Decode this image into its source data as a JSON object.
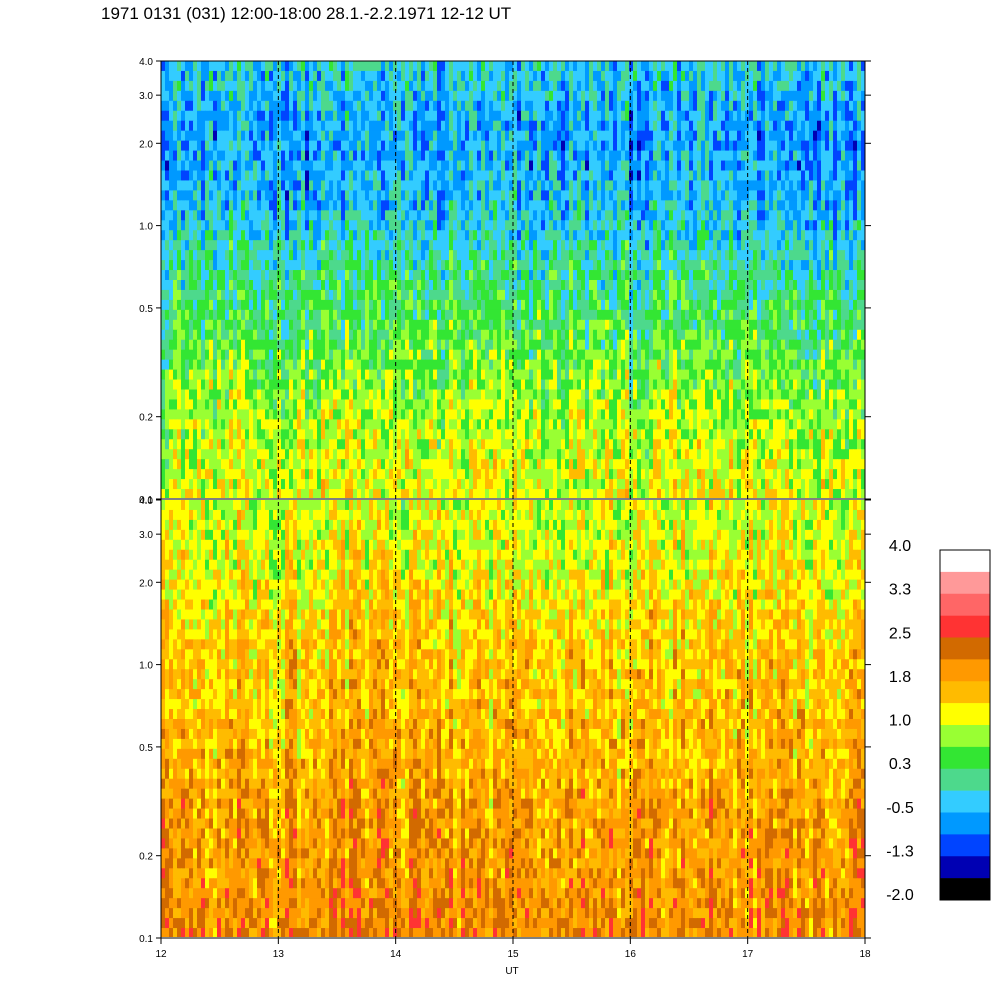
{
  "title": "1971 0131 (031) 12:00-18:00 28.1.-2.2.1971  12-12 UT",
  "chart_data": {
    "type": "heatmap",
    "title": "1971 0131 (031) 12:00-18:00 28.1.-2.2.1971  12-12 UT",
    "xlabel": "UT",
    "x_ticks": [
      "12",
      "13",
      "14",
      "15",
      "16",
      "17",
      "18"
    ],
    "xlim": [
      12,
      18
    ],
    "ylim": [
      0.1,
      4.0
    ],
    "y_scale": "log",
    "y_ticks": [
      "0.1",
      "0.2",
      "0.5",
      "1.0",
      "2.0",
      "3.0",
      "4.0"
    ],
    "y_tick_values": [
      0.1,
      0.2,
      0.5,
      1.0,
      2.0,
      3.0,
      4.0
    ],
    "grid": "dashed vertical lines at each hour",
    "panels": [
      {
        "name": "upper",
        "dominant_levels": "blue-cyan at high y, green mid, yellow low y",
        "profile_top_to_bottom": [
          -0.3,
          -0.6,
          -0.4,
          0.1,
          0.5,
          0.9,
          1.1
        ]
      },
      {
        "name": "lower",
        "dominant_levels": "yellow-green at top, orange to brown at low y",
        "profile_top_to_bottom": [
          1.0,
          1.2,
          1.5,
          1.6,
          1.8,
          1.9,
          2.1
        ]
      }
    ],
    "colorbar": {
      "labels": [
        "4.0",
        "3.3",
        "2.5",
        "1.8",
        "1.0",
        "0.3",
        "-0.5",
        "-1.3",
        "-2.0"
      ],
      "range": [
        -2.0,
        4.0
      ],
      "colors": [
        "#ffffff",
        "#ff9999",
        "#ff6666",
        "#ff3333",
        "#d26a00",
        "#ff9900",
        "#ffbb00",
        "#ffff00",
        "#99ff33",
        "#33e633",
        "#4dd98c",
        "#33ccff",
        "#0099ff",
        "#0044ff",
        "#0000b3",
        "#000000"
      ]
    }
  }
}
